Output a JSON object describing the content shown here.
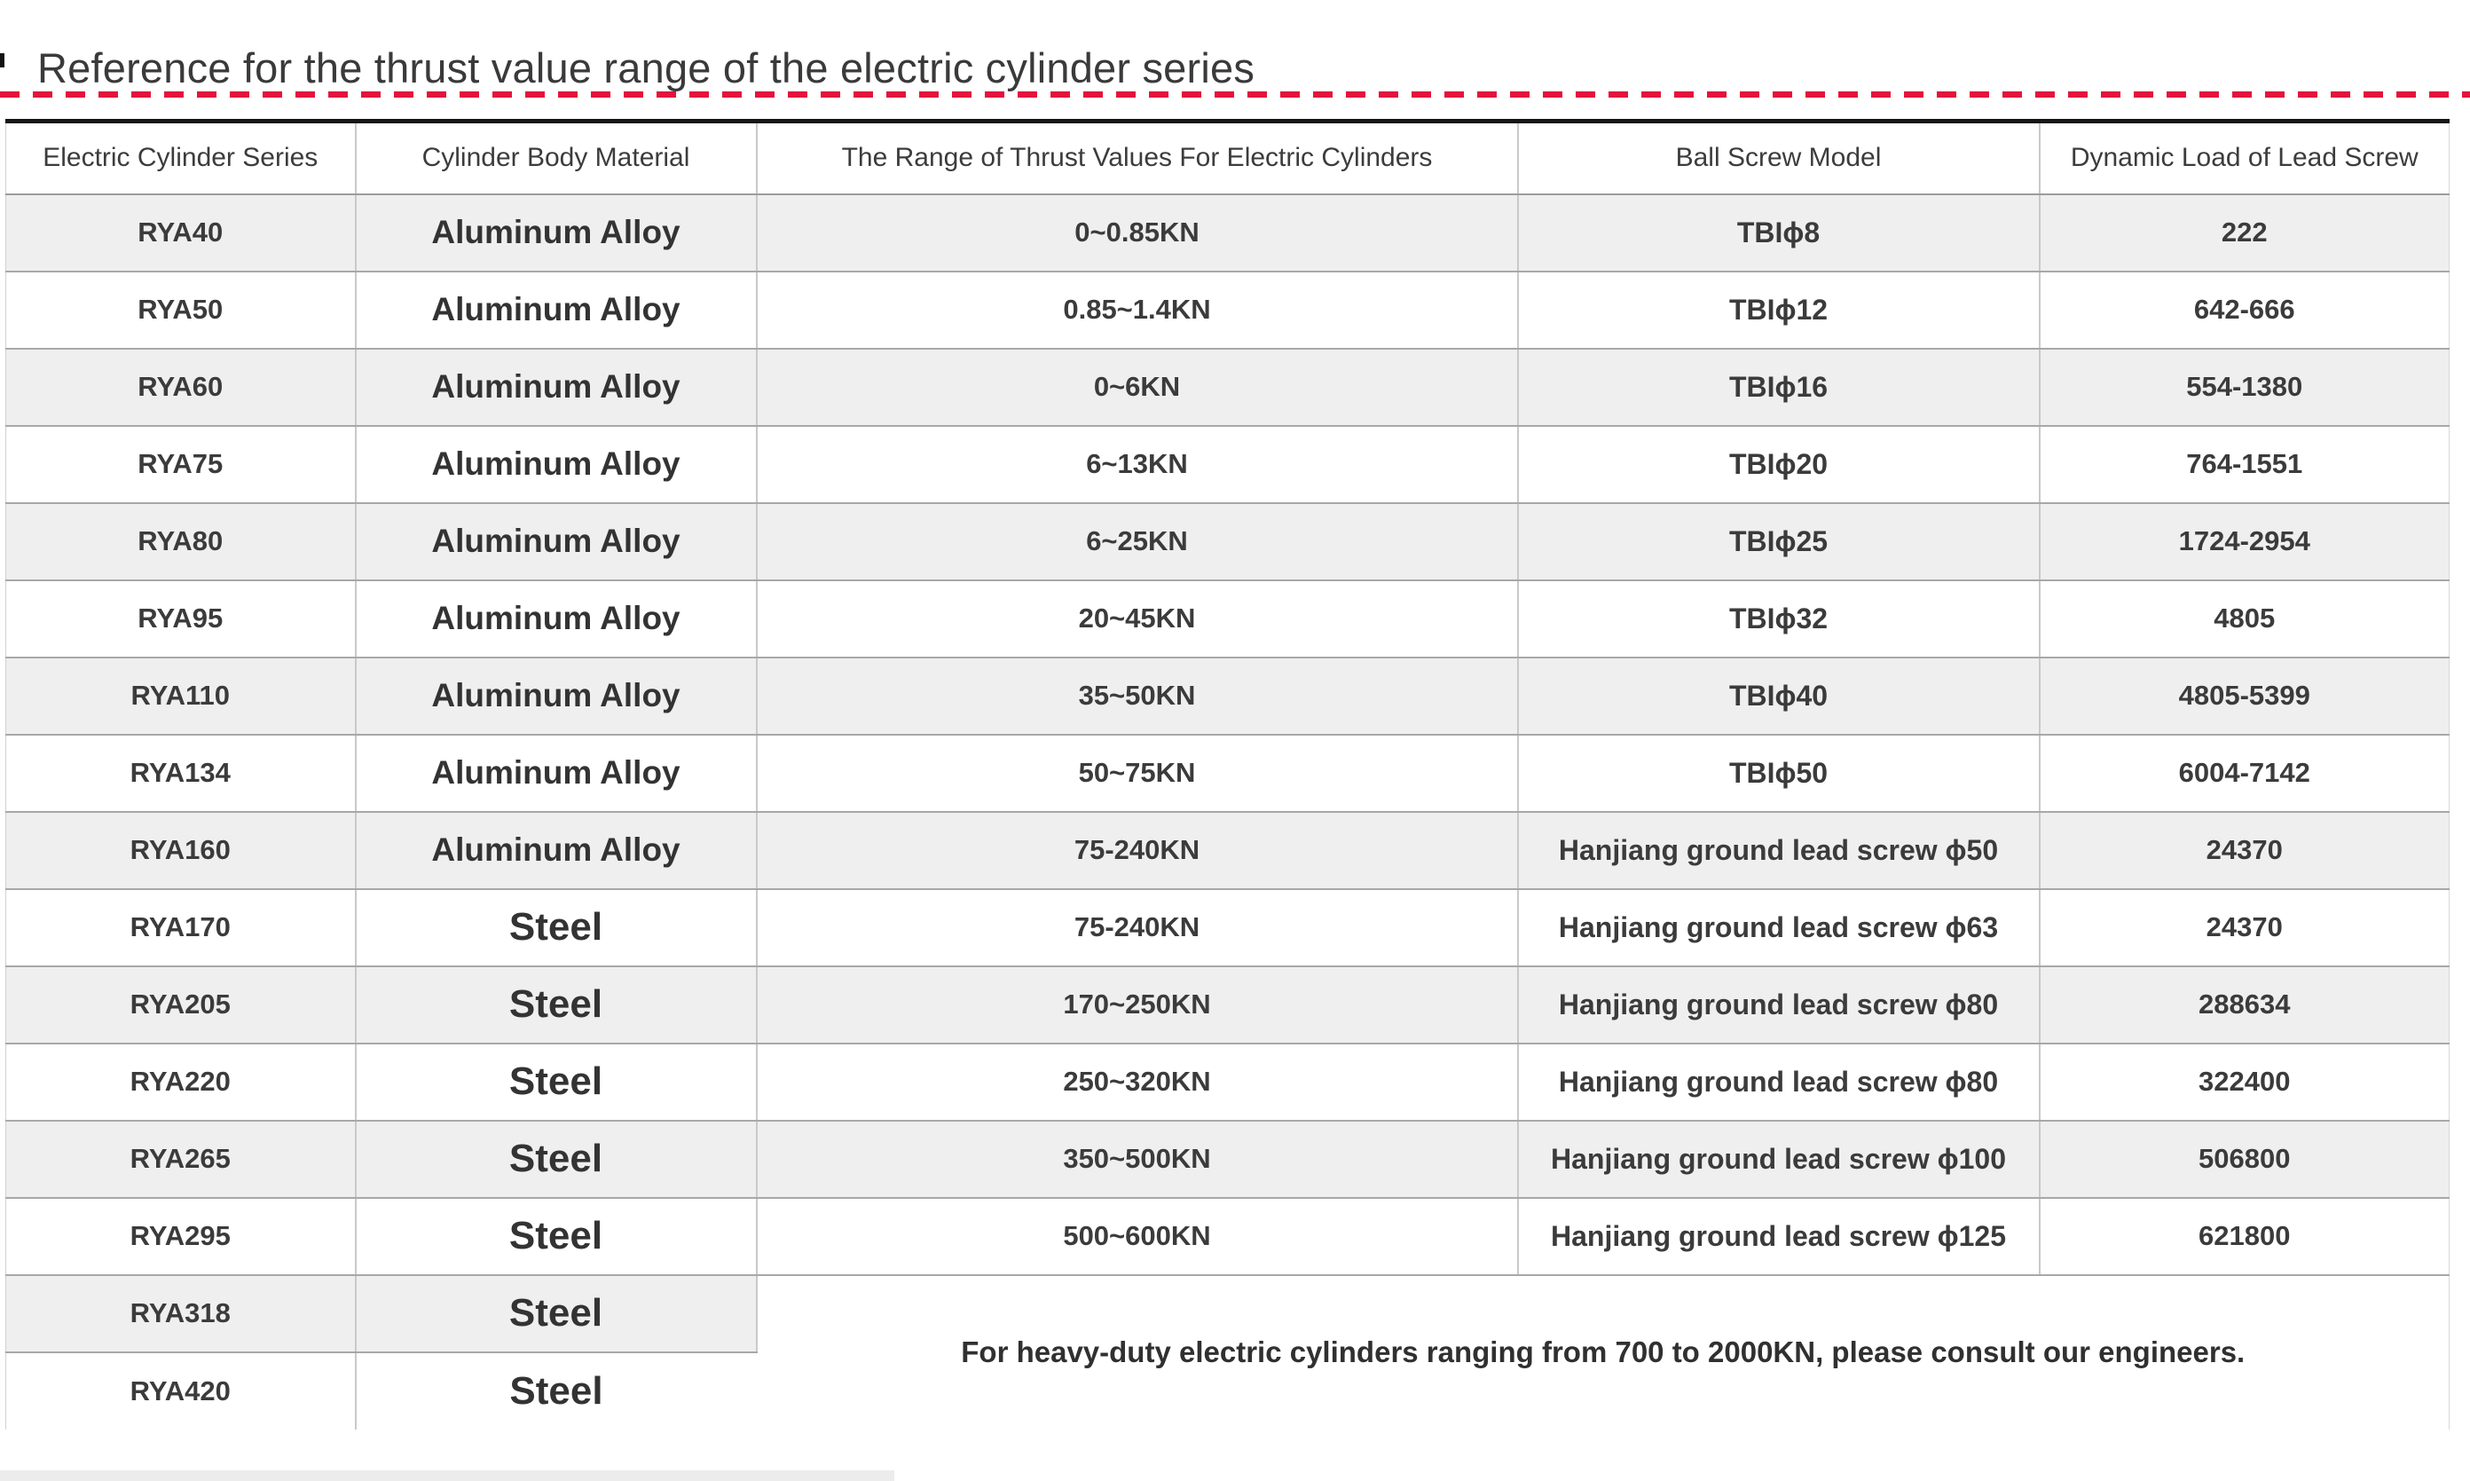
{
  "page": {
    "title": "Reference for the thrust value range of the electric cylinder series"
  },
  "colors": {
    "accent_red": "#e3143c",
    "table_top_border": "#161616",
    "row_alt_bg": "#efefef"
  },
  "table": {
    "columns": [
      "Electric Cylinder Series",
      "Cylinder Body Material",
      "The Range of Thrust Values For Electric Cylinders",
      "Ball Screw Model",
      "Dynamic Load of Lead Screw"
    ],
    "rows": [
      {
        "series": "RYA40",
        "material": "Aluminum Alloy",
        "thrust": "0~0.85KN",
        "screw": "TBIϕ8",
        "load": "222"
      },
      {
        "series": "RYA50",
        "material": "Aluminum Alloy",
        "thrust": "0.85~1.4KN",
        "screw": "TBIϕ12",
        "load": "642-666"
      },
      {
        "series": "RYA60",
        "material": "Aluminum Alloy",
        "thrust": "0~6KN",
        "screw": "TBIϕ16",
        "load": "554-1380"
      },
      {
        "series": "RYA75",
        "material": "Aluminum Alloy",
        "thrust": "6~13KN",
        "screw": "TBIϕ20",
        "load": "764-1551"
      },
      {
        "series": "RYA80",
        "material": "Aluminum Alloy",
        "thrust": "6~25KN",
        "screw": "TBIϕ25",
        "load": "1724-2954"
      },
      {
        "series": "RYA95",
        "material": "Aluminum Alloy",
        "thrust": "20~45KN",
        "screw": "TBIϕ32",
        "load": "4805"
      },
      {
        "series": "RYA110",
        "material": "Aluminum Alloy",
        "thrust": "35~50KN",
        "screw": "TBIϕ40",
        "load": "4805-5399"
      },
      {
        "series": "RYA134",
        "material": "Aluminum Alloy",
        "thrust": "50~75KN",
        "screw": "TBIϕ50",
        "load": "6004-7142"
      },
      {
        "series": "RYA160",
        "material": "Aluminum Alloy",
        "thrust": "75-240KN",
        "screw": "Hanjiang ground lead screw ϕ50",
        "load": "24370"
      },
      {
        "series": "RYA170",
        "material": "Steel",
        "thrust": "75-240KN",
        "screw": "Hanjiang ground lead screw ϕ63",
        "load": "24370"
      },
      {
        "series": "RYA205",
        "material": "Steel",
        "thrust": "170~250KN",
        "screw": "Hanjiang ground lead screw ϕ80",
        "load": "288634"
      },
      {
        "series": "RYA220",
        "material": "Steel",
        "thrust": "250~320KN",
        "screw": "Hanjiang ground lead screw ϕ80",
        "load": "322400"
      },
      {
        "series": "RYA265",
        "material": "Steel",
        "thrust": "350~500KN",
        "screw": "Hanjiang ground lead screw ϕ100",
        "load": "506800"
      },
      {
        "series": "RYA295",
        "material": "Steel",
        "thrust": "500~600KN",
        "screw": "Hanjiang ground lead screw ϕ125",
        "load": "621800"
      },
      {
        "series": "RYA318",
        "material": "Steel",
        "merged": true
      },
      {
        "series": "RYA420",
        "material": "Steel",
        "merged": true
      }
    ],
    "note": "For heavy-duty electric cylinders ranging from 700 to 2000KN, please consult our engineers."
  }
}
